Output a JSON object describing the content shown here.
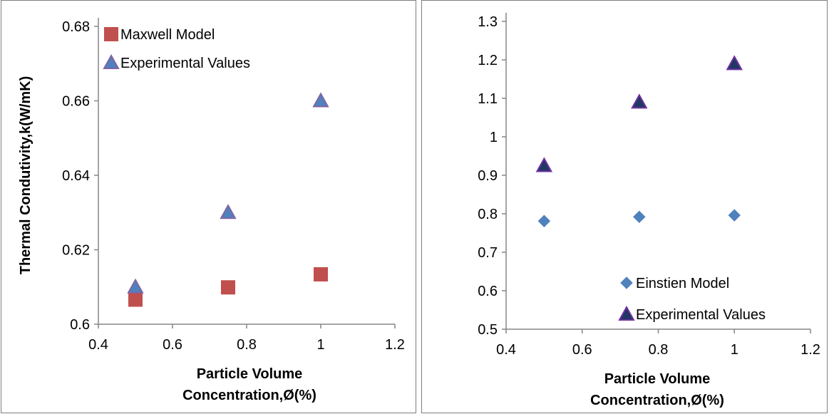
{
  "chart_data": [
    {
      "type": "scatter",
      "title": "",
      "xlabel_lines": [
        "Particle Volume",
        "Concentration,Ø(%)"
      ],
      "ylabel": "Thermal Condutivity,k(W/mK)",
      "xlim": [
        0.4,
        1.2
      ],
      "ylim": [
        0.6,
        0.68
      ],
      "xticks": [
        "0.4",
        "0.6",
        "0.8",
        "1",
        "1.2"
      ],
      "yticks": [
        "0.6",
        "0.62",
        "0.64",
        "0.66",
        "0.68"
      ],
      "legend_position": "top-left",
      "grid": false,
      "series": [
        {
          "name": "Maxwell Model",
          "marker": "square",
          "color": "#c0504d",
          "x": [
            0.5,
            0.75,
            1.0
          ],
          "y": [
            0.6066,
            0.6099,
            0.6134
          ]
        },
        {
          "name": "Experimental Values",
          "marker": "triangle",
          "color": "#4f81bd",
          "stroke": "#8064a2",
          "x": [
            0.5,
            0.75,
            1.0
          ],
          "y": [
            0.61,
            0.63,
            0.66
          ]
        }
      ]
    },
    {
      "type": "scatter",
      "title": "",
      "xlabel_lines": [
        "Particle Volume",
        "Concentration,Ø(%)"
      ],
      "ylabel": "",
      "xlim": [
        0.4,
        1.2
      ],
      "ylim": [
        0.5,
        1.3
      ],
      "xticks": [
        "0.4",
        "0.6",
        "0.8",
        "1",
        "1.2"
      ],
      "yticks": [
        "0.5",
        "0.6",
        "0.7",
        "0.8",
        "0.9",
        "1",
        "1.1",
        "1.2",
        "1.3"
      ],
      "legend_position": "bottom-right",
      "grid": false,
      "series": [
        {
          "name": "Einstien Model",
          "marker": "diamond",
          "color": "#4f81bd",
          "x": [
            0.5,
            0.75,
            1.0
          ],
          "y": [
            0.781,
            0.792,
            0.796
          ]
        },
        {
          "name": "Experimental Values",
          "marker": "triangle",
          "color": "#1f3864",
          "stroke": "#7030a0",
          "x": [
            0.5,
            0.75,
            1.0
          ],
          "y": [
            0.925,
            1.09,
            1.19
          ]
        }
      ]
    }
  ]
}
